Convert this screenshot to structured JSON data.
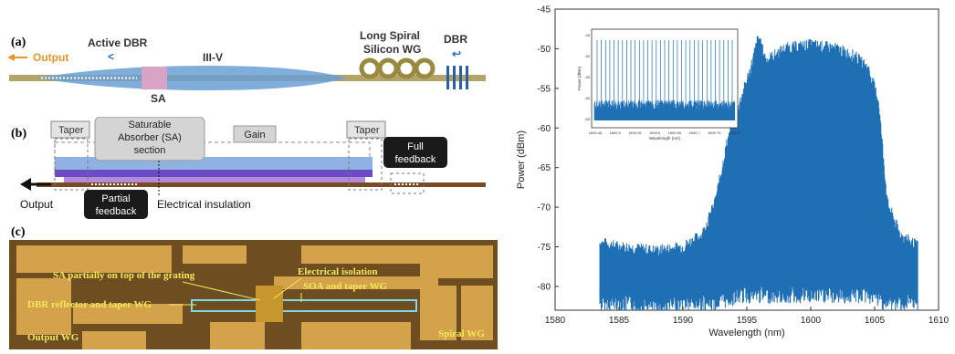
{
  "panel_a": {
    "label": "(a)",
    "output": "Output",
    "active_dbr": "Active DBR",
    "active_dbr_arrow": "<",
    "iii_v": "III-V",
    "sa": "SA",
    "spiral_line1": "Long Spiral",
    "spiral_line2": "Silicon WG",
    "dbr": "DBR",
    "colors": {
      "waveguide": "#b3a46a",
      "iii_v": "#6b9fd4",
      "sa": "#d9a3c4",
      "output_text": "#e0962a"
    }
  },
  "panel_b": {
    "label": "(b)",
    "taper_left": "Taper",
    "taper_right": "Taper",
    "sa_line1": "Saturable",
    "sa_line2": "Absorber (SA)",
    "sa_line3": "section",
    "gain": "Gain",
    "full_line1": "Full",
    "full_line2": "feedback",
    "partial_line1": "Partial",
    "partial_line2": "feedback",
    "output": "Output",
    "electrical_insulation": "Electrical insulation"
  },
  "panel_c": {
    "label": "(c)",
    "sa_note": "SA partially on top of the grating",
    "isolation_note": "Electrical isolation",
    "soa_note": "SOA and taper WG",
    "dbr_note": "DBR reflector and taper WG",
    "output_wg": "Output  WG",
    "spiral_wg": "Spiral WG",
    "colors": {
      "substrate": "#6e4e20",
      "metal": "#d4a24a",
      "annotation": "#f2e85a"
    }
  },
  "chart_data": {
    "type": "line",
    "xlabel": "Wavelength (nm)",
    "ylabel": "Power (dBm)",
    "xlim": [
      1580,
      1610
    ],
    "ylim": [
      -83,
      -45
    ],
    "x_ticks": [
      1580,
      1585,
      1590,
      1595,
      1600,
      1605,
      1610
    ],
    "y_ticks": [
      -45,
      -50,
      -55,
      -60,
      -65,
      -70,
      -75,
      -80
    ],
    "grid": false,
    "color": "#1f6fb4",
    "series": [
      {
        "x": [
          1583.5,
          1585,
          1588,
          1590,
          1591.5,
          1592.5,
          1593.5,
          1594.5,
          1595.3,
          1595.9,
          1596.5,
          1598,
          1600,
          1602,
          1603.5,
          1604.5,
          1605.3,
          1606,
          1607,
          1608.4
        ],
        "upper": [
          -75,
          -75.5,
          -76,
          -75.5,
          -74,
          -70,
          -62,
          -57,
          -53,
          -49,
          -52,
          -50.5,
          -50,
          -50.5,
          -51.5,
          -53,
          -57,
          -70,
          -74,
          -75.5
        ],
        "lower": [
          -81,
          -81,
          -81.5,
          -81,
          -81,
          -81,
          -80.5,
          -80,
          -80,
          -80,
          -80,
          -80,
          -80,
          -80,
          -80,
          -80,
          -80.5,
          -81,
          -81,
          -81
        ]
      }
    ],
    "inset": {
      "type": "line",
      "xlabel": "Wavelength (nm)",
      "ylabel": "Power (dBm)",
      "x_ticks": [
        "1600.45",
        "1600.5",
        "1600.55",
        "1600.6",
        "1600.65",
        "1600.7",
        "1600.75",
        "1600.8"
      ],
      "y_ticks": [
        "-45",
        "-50",
        "-55",
        "-60",
        "-65"
      ],
      "peak_count": 33
    }
  }
}
